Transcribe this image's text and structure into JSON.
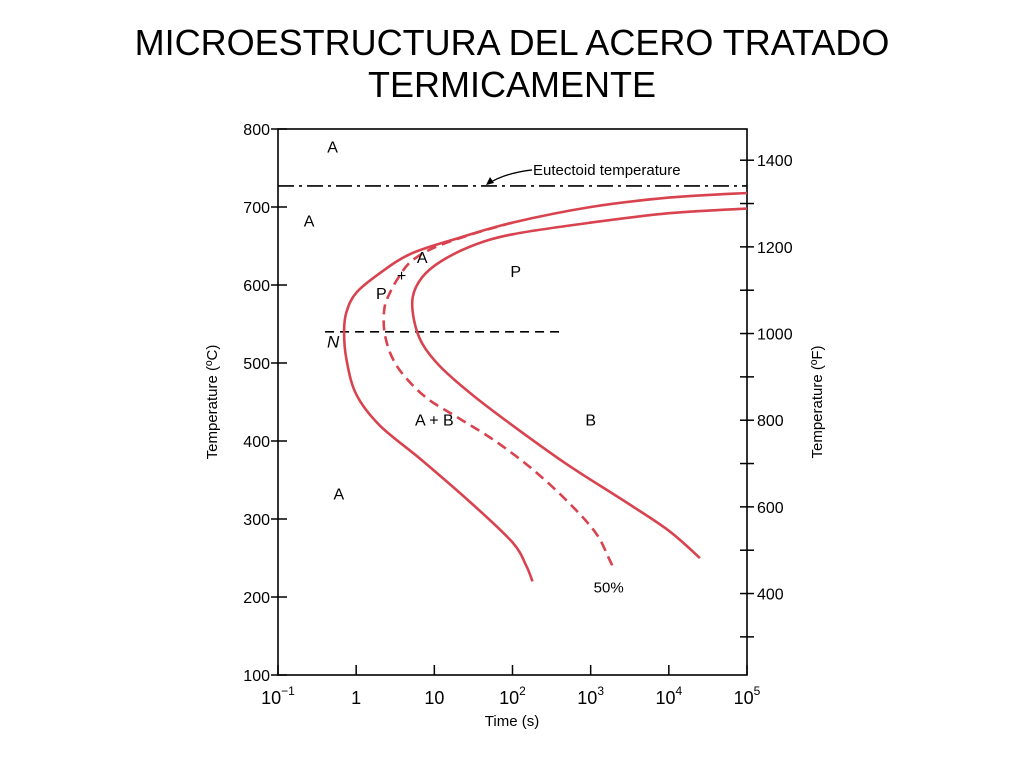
{
  "slide": {
    "title_line1": "MICROESTRUCTURA DEL ACERO TRATADO",
    "title_line2": "TERMICAMENTE"
  },
  "chart_data": {
    "type": "line",
    "title": "",
    "xlabel": "Time (s)",
    "ylabel": "Temperature (ºC)",
    "y2label": "Temperature (ºF)",
    "xscale": "log",
    "xlim": [
      0.1,
      100000
    ],
    "ylim": [
      100,
      800
    ],
    "y2lim": [
      212,
      1472
    ],
    "grid": false,
    "x_ticks": [
      {
        "value": 0.1,
        "base": "10",
        "exp": "−1"
      },
      {
        "value": 1,
        "base": "1",
        "exp": ""
      },
      {
        "value": 10,
        "base": "10",
        "exp": ""
      },
      {
        "value": 100,
        "base": "10",
        "exp": "2"
      },
      {
        "value": 1000,
        "base": "10",
        "exp": "3"
      },
      {
        "value": 10000,
        "base": "10",
        "exp": "4"
      },
      {
        "value": 100000,
        "base": "10",
        "exp": "5"
      }
    ],
    "y_ticks": [
      100,
      200,
      300,
      400,
      500,
      600,
      700,
      800
    ],
    "y2_ticks": [
      400,
      600,
      800,
      1000,
      1200,
      1400
    ],
    "reference_lines": [
      {
        "name": "eutectoid",
        "label": "Eutectoid temperature",
        "y": 727,
        "style": "dash-dot",
        "x_from": 0.1,
        "x_to": 100000
      },
      {
        "name": "nose",
        "label": "",
        "y": 540,
        "style": "dashed",
        "x_from": 0.4,
        "x_to": 400
      }
    ],
    "nose_label": "N",
    "series": [
      {
        "name": "",
        "role": "start",
        "style": "solid",
        "points": [
          [
            100000,
            718
          ],
          [
            10000,
            712
          ],
          [
            1000,
            700
          ],
          [
            100,
            680
          ],
          [
            20,
            660
          ],
          [
            5,
            640
          ],
          [
            2,
            615
          ],
          [
            1,
            590
          ],
          [
            0.75,
            565
          ],
          [
            0.7,
            540
          ],
          [
            0.75,
            505
          ],
          [
            1,
            460
          ],
          [
            2,
            420
          ],
          [
            7,
            375
          ],
          [
            30,
            320
          ],
          [
            100,
            270
          ],
          [
            150,
            240
          ],
          [
            180,
            220
          ]
        ]
      },
      {
        "name": "",
        "role": "50%",
        "style": "dashed",
        "points": [
          [
            100,
            680
          ],
          [
            30,
            665
          ],
          [
            10,
            648
          ],
          [
            5,
            630
          ],
          [
            3.5,
            610
          ],
          [
            2.7,
            590
          ],
          [
            2.3,
            570
          ],
          [
            2.3,
            540
          ],
          [
            2.8,
            510
          ],
          [
            4,
            485
          ],
          [
            8,
            455
          ],
          [
            20,
            430
          ],
          [
            60,
            400
          ],
          [
            200,
            360
          ],
          [
            600,
            315
          ],
          [
            1200,
            280
          ],
          [
            1700,
            250
          ],
          [
            2000,
            235
          ]
        ],
        "label": "50%",
        "label_at": [
          1700,
          206
        ]
      },
      {
        "name": "",
        "role": "finish",
        "style": "solid",
        "points": [
          [
            100000,
            698
          ],
          [
            10000,
            692
          ],
          [
            1000,
            680
          ],
          [
            100,
            665
          ],
          [
            30,
            650
          ],
          [
            12,
            630
          ],
          [
            7,
            610
          ],
          [
            5.3,
            585
          ],
          [
            5.5,
            555
          ],
          [
            7,
            525
          ],
          [
            12,
            495
          ],
          [
            30,
            460
          ],
          [
            100,
            420
          ],
          [
            500,
            370
          ],
          [
            3000,
            320
          ],
          [
            10000,
            285
          ],
          [
            25000,
            250
          ]
        ]
      }
    ],
    "annotations": [
      {
        "text": "A",
        "x": 0.5,
        "y": 770
      },
      {
        "text": "A",
        "x": 0.25,
        "y": 675
      },
      {
        "text": "+",
        "x": 3.8,
        "y": 605
      },
      {
        "text": "A",
        "x": 7,
        "y": 628
      },
      {
        "text": "P",
        "x": 2.1,
        "y": 582
      },
      {
        "text": "P",
        "x": 110,
        "y": 610
      },
      {
        "text": "A + B",
        "x": 10,
        "y": 420
      },
      {
        "text": "B",
        "x": 1000,
        "y": 420
      },
      {
        "text": "A",
        "x": 0.6,
        "y": 325
      }
    ],
    "colors": {
      "curve": "#d8434f",
      "axis": "#000000",
      "text": "#000000"
    }
  }
}
